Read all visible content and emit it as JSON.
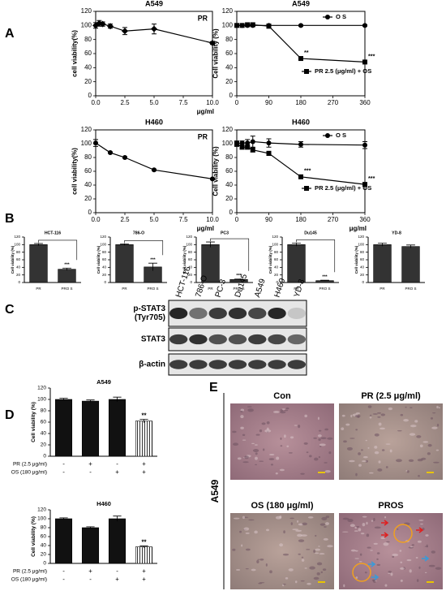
{
  "panel_labels": [
    "A",
    "B",
    "C",
    "D",
    "E"
  ],
  "chart_data": [
    {
      "type": "line",
      "title": "A549",
      "annotation": "PR",
      "x": [
        0,
        0.3,
        0.6,
        1.25,
        2.5,
        5,
        10
      ],
      "xlim": [
        0,
        10
      ],
      "xticks": [
        {
          "value": 0,
          "label": "0.0"
        },
        2.5,
        {
          "value": 5,
          "label": "5.0"
        },
        7.5,
        {
          "value": 10,
          "label": "10.0"
        }
      ],
      "xlabel": "μg/ml",
      "ylim": [
        0,
        120
      ],
      "yticks": [
        0,
        20,
        40,
        60,
        80,
        100,
        120
      ],
      "ylabel": "cell viability(%)",
      "series": [
        {
          "color": "#000000",
          "marker": "diamond",
          "values": [
            100,
            103,
            102,
            99,
            92,
            95,
            75
          ],
          "errors": [
            4,
            4,
            3,
            3,
            5,
            7,
            2
          ]
        }
      ]
    },
    {
      "type": "line",
      "title": "A549",
      "x": [
        0,
        15,
        30,
        45,
        90,
        180,
        360
      ],
      "xlim": [
        0,
        360
      ],
      "xticks": [
        0,
        90,
        180,
        270,
        360
      ],
      "ylim": [
        0,
        120
      ],
      "yticks": [
        0,
        20,
        40,
        60,
        80,
        100,
        120
      ],
      "ylabel": "Cell viability (%)",
      "series": [
        {
          "name": "O S",
          "color": "#000000",
          "marker": "circle",
          "values": [
            100,
            100,
            100,
            100,
            100,
            100,
            100
          ],
          "errors": [
            1,
            1,
            1,
            1,
            1,
            1,
            1
          ]
        },
        {
          "name": "PR 2.5 (μg/ml) + OS",
          "color": "#000000",
          "marker": "square",
          "values": [
            100,
            100,
            101,
            101,
            99,
            53,
            48
          ],
          "errors": [
            2,
            2,
            2,
            2,
            3,
            2,
            2
          ],
          "significance": [
            null,
            null,
            null,
            null,
            null,
            "**",
            "***"
          ]
        }
      ]
    },
    {
      "type": "line",
      "title": "H460",
      "annotation": "PR",
      "x": [
        0,
        1.25,
        2.5,
        5,
        10
      ],
      "xlim": [
        0,
        10
      ],
      "xticks": [
        {
          "value": 0,
          "label": "0.0"
        },
        2.5,
        {
          "value": 5,
          "label": "5.0"
        },
        7.5,
        {
          "value": 10,
          "label": "10.0"
        }
      ],
      "xlabel": "μg/ml",
      "ylim": [
        0,
        120
      ],
      "yticks": [
        0,
        20,
        40,
        60,
        80,
        100,
        120
      ],
      "ylabel": "cell viability(%)",
      "series": [
        {
          "color": "#000000",
          "marker": "circle",
          "values": [
            101,
            87,
            80,
            62,
            49
          ],
          "errors": [
            5,
            1,
            1,
            1,
            1
          ]
        }
      ]
    },
    {
      "type": "line",
      "title": "H460",
      "xlabel": "μg/ml",
      "x": [
        0,
        15,
        30,
        45,
        90,
        180,
        360
      ],
      "xlim": [
        0,
        360
      ],
      "xticks": [
        0,
        90,
        180,
        270,
        360
      ],
      "ylim": [
        0,
        120
      ],
      "yticks": [
        0,
        20,
        40,
        60,
        80,
        100,
        120
      ],
      "ylabel": "Cell viability (%)",
      "series": [
        {
          "name": "O S",
          "color": "#000000",
          "marker": "circle",
          "values": [
            100,
            101,
            101,
            103,
            101,
            99,
            98
          ],
          "errors": [
            4,
            3,
            5,
            8,
            6,
            4,
            5
          ]
        },
        {
          "name": "PR 2.5 (μg/ml) + OS",
          "color": "#000000",
          "marker": "square",
          "values": [
            100,
            95,
            95,
            91,
            86,
            52,
            41
          ],
          "errors": [
            2,
            3,
            3,
            3,
            3,
            2,
            2
          ],
          "significance": [
            null,
            null,
            null,
            null,
            null,
            "***",
            "***"
          ]
        }
      ]
    },
    {
      "type": "bar",
      "title": "HCT-116",
      "categories": [
        "PR",
        "PRO S"
      ],
      "ylim": [
        0,
        120
      ],
      "yticks": [
        0,
        20,
        40,
        60,
        80,
        100,
        120
      ],
      "ylabel": "Cell viability (%)",
      "color": "#333333",
      "values": [
        100,
        35
      ],
      "errors": [
        3,
        3
      ],
      "significance": [
        null,
        "***"
      ]
    },
    {
      "type": "bar",
      "title": "786-O",
      "categories": [
        "PR",
        "PRO S"
      ],
      "ylim": [
        0,
        120
      ],
      "yticks": [
        0,
        20,
        40,
        60,
        80,
        100,
        120
      ],
      "ylabel": "Cell viability (%)",
      "color": "#333333",
      "values": [
        100,
        41
      ],
      "errors": [
        2,
        10
      ],
      "significance": [
        null,
        "***"
      ]
    },
    {
      "type": "bar",
      "title": "PC3",
      "categories": [
        "PR",
        "PRO S"
      ],
      "ylim": [
        0,
        120
      ],
      "yticks": [
        0,
        20,
        40,
        60,
        80,
        100,
        120
      ],
      "ylabel": "Cell viability (%)",
      "color": "#333333",
      "values": [
        100,
        8
      ],
      "errors": [
        7,
        1
      ],
      "significance": [
        null,
        "***"
      ]
    },
    {
      "type": "bar",
      "title": "Du145",
      "categories": [
        "PR",
        "PRO S"
      ],
      "ylim": [
        0,
        120
      ],
      "yticks": [
        0,
        20,
        40,
        60,
        80,
        100,
        120
      ],
      "ylabel": "Cell viability (%)",
      "color": "#333333",
      "values": [
        100,
        5
      ],
      "errors": [
        4,
        1
      ],
      "significance": [
        null,
        "***"
      ]
    },
    {
      "type": "bar",
      "title": "YD-8",
      "categories": [
        "PR",
        "PRO S"
      ],
      "ylim": [
        0,
        120
      ],
      "yticks": [
        0,
        20,
        40,
        60,
        80,
        100,
        120
      ],
      "ylabel": "Cell viability (%)",
      "color": "#333333",
      "values": [
        100,
        95
      ],
      "errors": [
        4,
        4
      ],
      "significance": [
        null,
        null
      ]
    },
    {
      "type": "bar",
      "title": "A549",
      "ylim": [
        0,
        120
      ],
      "yticks": [
        0,
        20,
        40,
        60,
        80,
        100,
        120
      ],
      "ylabel": "Cell viability (%)",
      "color": "#111111",
      "values": [
        100,
        97,
        100,
        62
      ],
      "errors": [
        2,
        2,
        4,
        3
      ],
      "hatched": [
        false,
        false,
        false,
        true
      ],
      "significance": [
        null,
        null,
        null,
        "**"
      ],
      "treatments": [
        {
          "label": "PR (2.5 μg/ml)",
          "signs": [
            "-",
            "+",
            "-",
            "+"
          ]
        },
        {
          "label": "OS (180 μg/ml)",
          "signs": [
            "-",
            "-",
            "+",
            "+"
          ]
        }
      ]
    },
    {
      "type": "bar",
      "title": "H460",
      "ylim": [
        0,
        120
      ],
      "yticks": [
        0,
        20,
        40,
        60,
        80,
        100,
        120
      ],
      "ylabel": "Cell viability (%)",
      "color": "#111111",
      "values": [
        100,
        80,
        100,
        37
      ],
      "errors": [
        2,
        2,
        6,
        2
      ],
      "hatched": [
        false,
        false,
        false,
        true
      ],
      "significance": [
        null,
        null,
        null,
        "**"
      ],
      "treatments": [
        {
          "label": "PR (2.5 μg/ml)",
          "signs": [
            "-",
            "+",
            "-",
            "+"
          ]
        },
        {
          "label": "OS (180 μg/ml)",
          "signs": [
            "-",
            "-",
            "+",
            "+"
          ]
        }
      ]
    }
  ],
  "blot": {
    "cell_lines": [
      "HCT-116",
      "786-O",
      "PC-3",
      "Du145",
      "A549",
      "H460",
      "YD-8"
    ],
    "rows": [
      [
        "p-STAT3",
        "(Tyr705)"
      ],
      [
        "STAT3"
      ],
      [
        "β-actin"
      ]
    ]
  },
  "images": {
    "side_label": "A549",
    "labels": [
      "Con",
      "PR (2.5 μg/ml)",
      "OS (180 μg/ml)",
      "PROS"
    ]
  }
}
